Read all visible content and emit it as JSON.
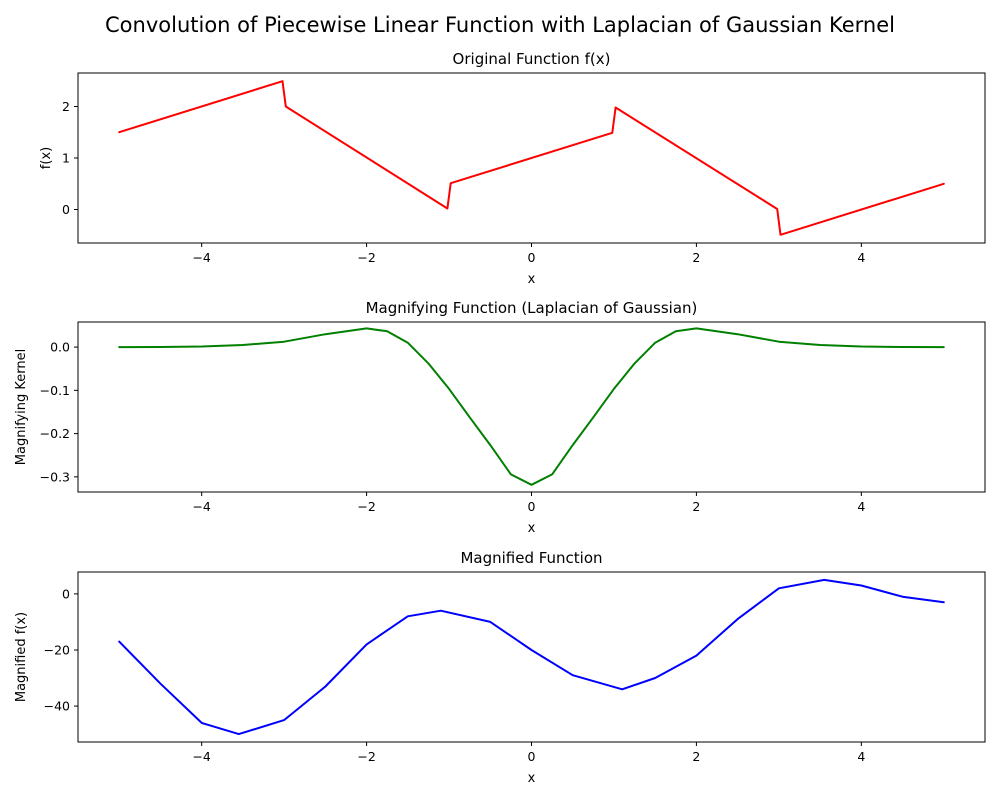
{
  "figure": {
    "title": "Convolution of Piecewise Linear Function with Laplacian of Gaussian Kernel"
  },
  "chart_data": [
    {
      "type": "line",
      "title": "Original Function f(x)",
      "xlabel": "x",
      "ylabel": "f(x)",
      "xlim": [
        -5.5,
        5.5
      ],
      "ylim": [
        -0.65,
        2.65
      ],
      "xticks": [
        -4,
        -2,
        0,
        2,
        4
      ],
      "yticks": [
        0,
        1,
        2
      ],
      "xtick_labels": [
        "−4",
        "−2",
        "0",
        "2",
        "4"
      ],
      "ytick_labels": [
        "0",
        "1",
        "2"
      ],
      "grid": false,
      "series": [
        {
          "color": "#ff0000",
          "x": [
            -5,
            -3.02,
            -2.98,
            -1.02,
            -0.98,
            0.98,
            1.02,
            2.98,
            3.02,
            5
          ],
          "y": [
            1.5,
            2.49,
            2.0,
            0.02,
            0.51,
            1.49,
            1.98,
            0.01,
            -0.49,
            0.5
          ]
        }
      ]
    },
    {
      "type": "line",
      "title": "Magnifying Function (Laplacian of Gaussian)",
      "xlabel": "x",
      "ylabel": "Magnifying Kernel",
      "xlim": [
        -5.5,
        5.5
      ],
      "ylim": [
        -0.335,
        0.058
      ],
      "xticks": [
        -4,
        -2,
        0,
        2,
        4
      ],
      "yticks": [
        -0.3,
        -0.2,
        -0.1,
        0.0
      ],
      "xtick_labels": [
        "−4",
        "−2",
        "0",
        "2",
        "4"
      ],
      "ytick_labels": [
        "−0.3",
        "−0.2",
        "−0.1",
        "0.0"
      ],
      "grid": false,
      "series": [
        {
          "color": "#008000",
          "x": [
            -5,
            -4.5,
            -4,
            -3.5,
            -3,
            -2.5,
            -2,
            -1.75,
            -1.5,
            -1.25,
            -1,
            -0.75,
            -0.5,
            -0.25,
            0,
            0.25,
            0.5,
            0.75,
            1,
            1.25,
            1.5,
            1.75,
            2,
            2.5,
            3,
            3.5,
            4,
            4.5,
            5
          ],
          "y": [
            0.0,
            0.0003,
            0.0013,
            0.0048,
            0.0124,
            0.0299,
            0.0431,
            0.0364,
            0.0101,
            -0.0376,
            -0.0965,
            -0.1622,
            -0.2265,
            -0.2942,
            -0.3183,
            -0.2942,
            -0.2265,
            -0.1622,
            -0.0965,
            -0.0376,
            0.0101,
            0.0364,
            0.0431,
            0.0299,
            0.0124,
            0.0048,
            0.0013,
            0.0003,
            0.0
          ]
        }
      ]
    },
    {
      "type": "line",
      "title": "Magnified Function",
      "xlabel": "x",
      "ylabel": "Magnified f(x)",
      "xlim": [
        -5.5,
        5.5
      ],
      "ylim": [
        -52.8,
        7.8
      ],
      "xticks": [
        -4,
        -2,
        0,
        2,
        4
      ],
      "yticks": [
        -40,
        -20,
        0
      ],
      "xtick_labels": [
        "−4",
        "−2",
        "0",
        "2",
        "4"
      ],
      "ytick_labels": [
        "−40",
        "−20",
        "0"
      ],
      "grid": false,
      "series": [
        {
          "color": "#0000ff",
          "x": [
            -5,
            -4.5,
            -4,
            -3.55,
            -3,
            -2.5,
            -2,
            -1.5,
            -1.1,
            -0.5,
            0,
            0.5,
            1.1,
            1.5,
            2,
            2.5,
            3,
            3.55,
            4,
            4.5,
            5
          ],
          "y": [
            -17,
            -32,
            -46,
            -50,
            -45,
            -33,
            -18,
            -8,
            -6,
            -10,
            -20,
            -29,
            -34,
            -30,
            -22,
            -9,
            2,
            5,
            3,
            -1,
            -3
          ]
        }
      ]
    }
  ]
}
